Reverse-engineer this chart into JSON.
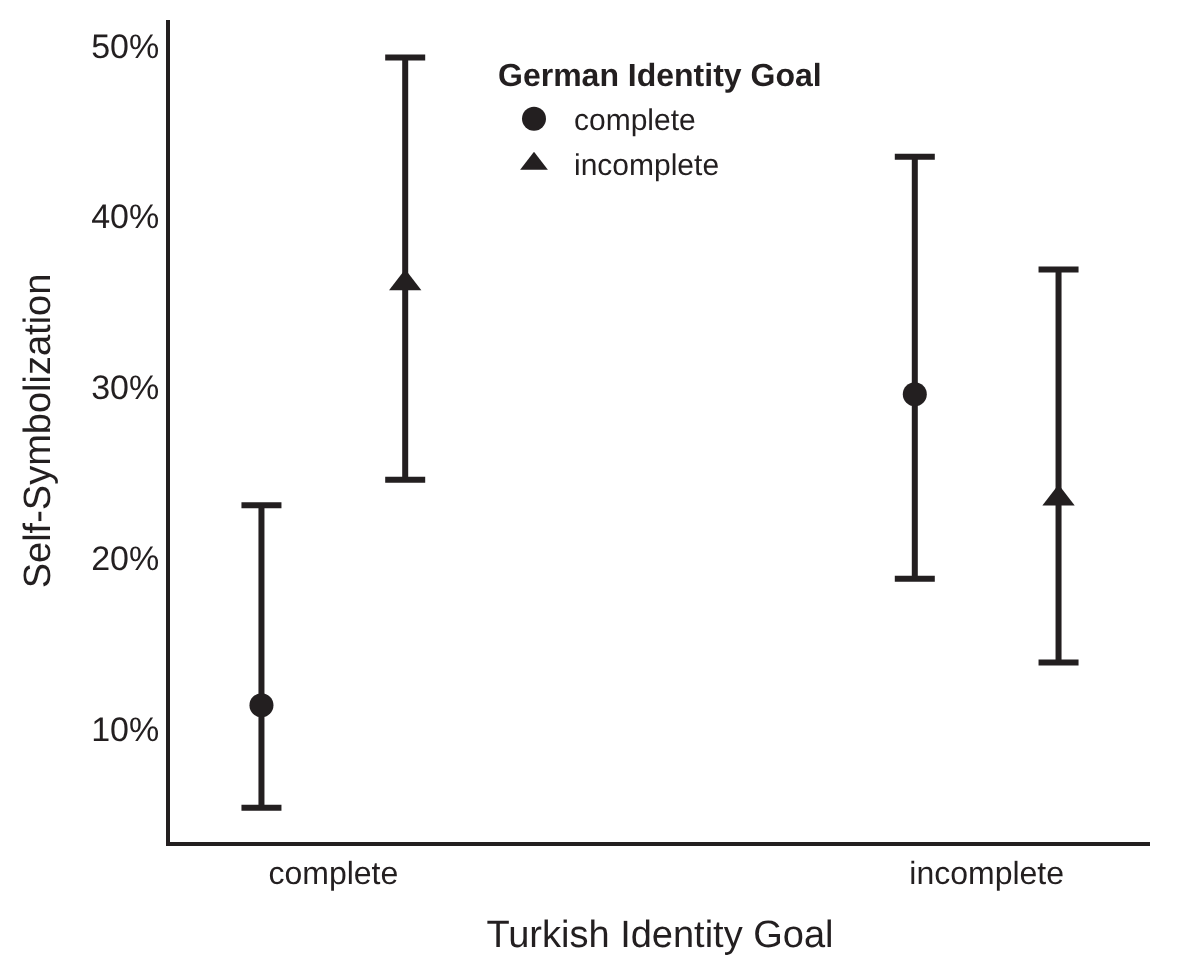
{
  "chart_data": {
    "type": "scatter",
    "xlabel": "Turkish Identity Goal",
    "ylabel": "Self-Symbolization",
    "legend_title": "German Identity Goal",
    "categories": [
      "complete",
      "incomplete"
    ],
    "series": [
      {
        "name": "complete",
        "color": "#231f20",
        "marker": "circle",
        "values": [
          11.4,
          29.6
        ],
        "errors": [
          [
            5.4,
            23.1
          ],
          [
            18.8,
            43.5
          ]
        ]
      },
      {
        "name": "incomplete",
        "color": "#231f20",
        "marker": "triangle",
        "values": [
          36.1,
          23.5
        ],
        "errors": [
          [
            24.6,
            49.3
          ],
          [
            13.9,
            36.9
          ]
        ]
      }
    ],
    "ylim": [
      3.4,
      51.5
    ],
    "yticks": [
      {
        "value": 10,
        "label": "10%"
      },
      {
        "value": 20,
        "label": "20%"
      },
      {
        "value": 30,
        "label": "30%"
      },
      {
        "value": 40,
        "label": "40%"
      },
      {
        "value": 50,
        "label": "50%"
      }
    ],
    "legend": "top"
  }
}
